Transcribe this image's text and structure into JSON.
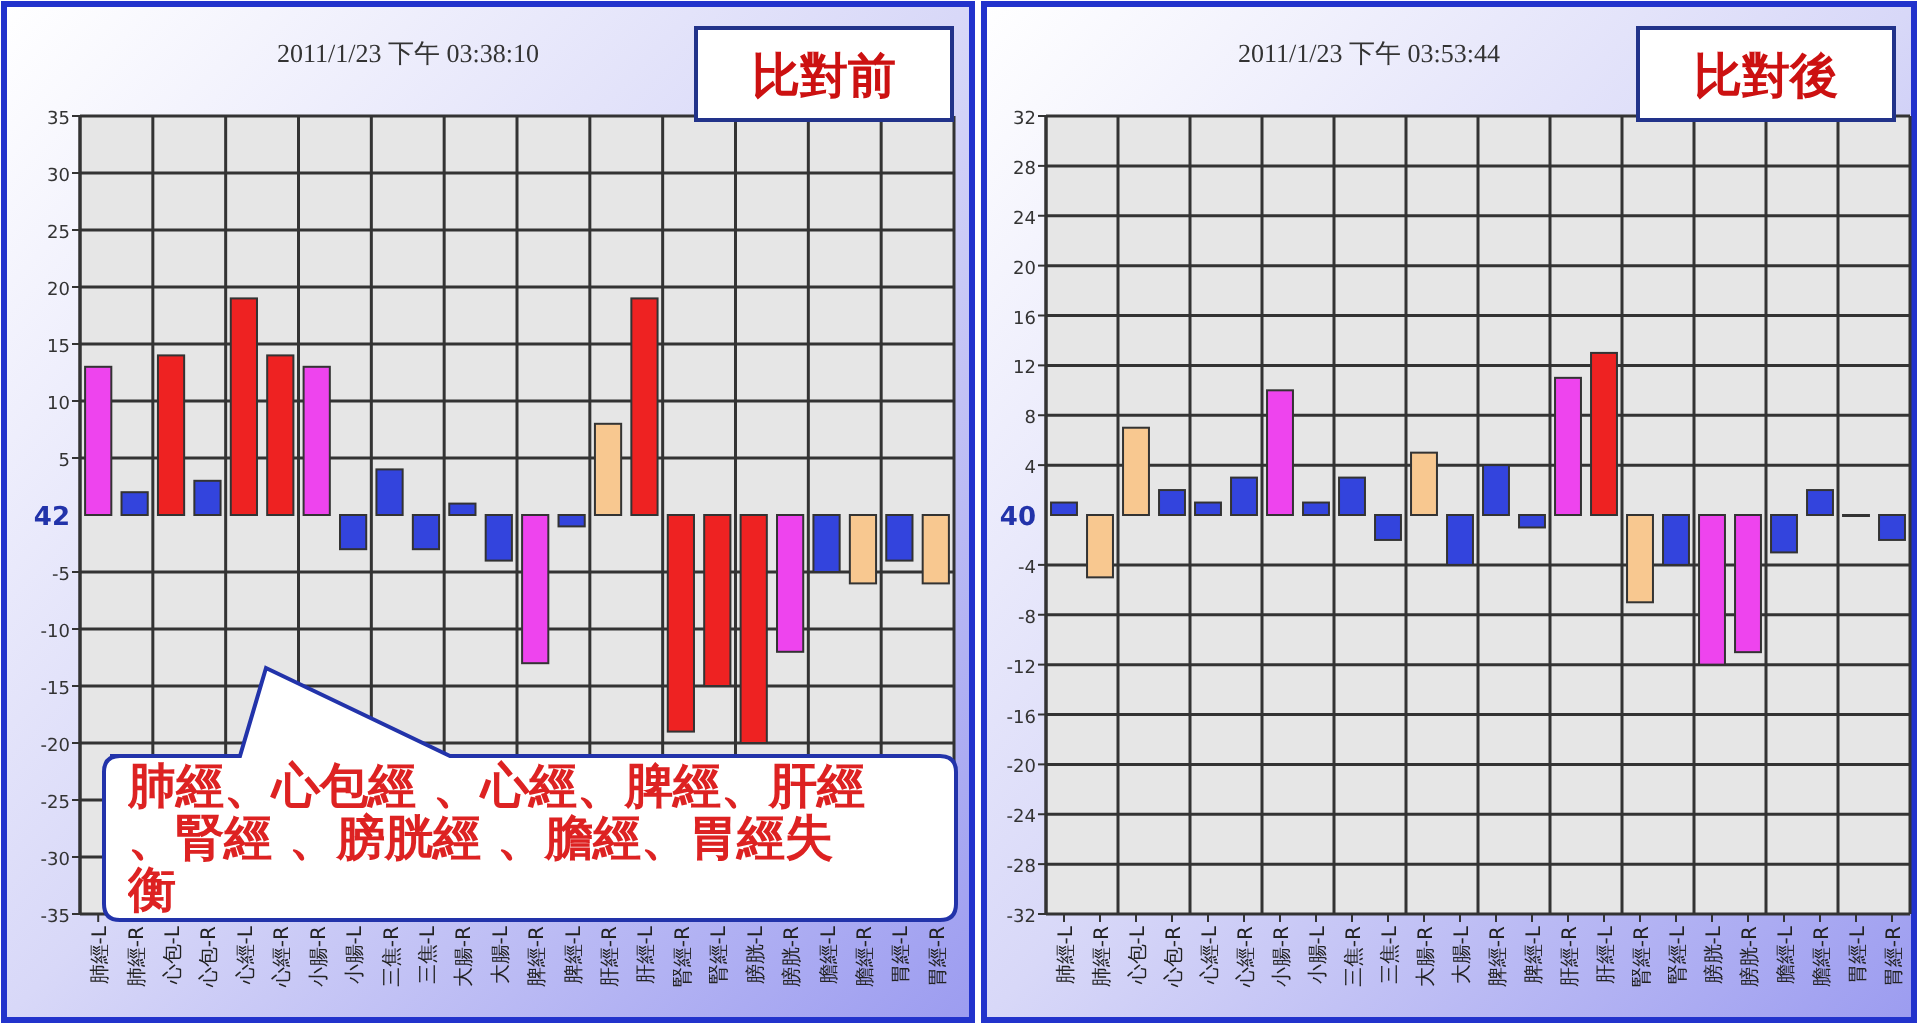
{
  "chart_data": [
    {
      "type": "bar",
      "title": "比對前",
      "subtitle": "2011/1/23 下午 03:38:10",
      "grid": true,
      "categories": [
        "肺經-L",
        "肺經-R",
        "心包-L",
        "心包-R",
        "心經-L",
        "心經-R",
        "小腸-R",
        "小腸-L",
        "三焦-R",
        "三焦-L",
        "大腸-R",
        "大腸-L",
        "脾經-R",
        "脾經-L",
        "肝經-R",
        "肝經-L",
        "腎經-R",
        "腎經-L",
        "膀胱-L",
        "膀胱-R",
        "膽經-L",
        "膽經-R",
        "胃經-L",
        "胃經-R"
      ],
      "values": [
        13,
        2,
        14,
        3,
        19,
        14,
        13,
        -3,
        4,
        -3,
        1,
        -4,
        -13,
        -1,
        8,
        19,
        -19,
        -15,
        -20,
        -12,
        -5,
        -6,
        -4,
        -6
      ],
      "colors": [
        "#ee44ee",
        "#3344dd",
        "#ee2222",
        "#3344dd",
        "#ee2222",
        "#ee2222",
        "#ee44ee",
        "#3344dd",
        "#3344dd",
        "#3344dd",
        "#3344dd",
        "#3344dd",
        "#ee44ee",
        "#3344dd",
        "#f8c890",
        "#ee2222",
        "#ee2222",
        "#ee2222",
        "#ee2222",
        "#ee44ee",
        "#3344dd",
        "#f8c890",
        "#3344dd",
        "#f8c890"
      ],
      "ylim": [
        -35,
        35
      ],
      "yticks": [
        -35,
        -30,
        -25,
        -20,
        -15,
        -10,
        -5,
        5,
        10,
        15,
        20,
        25,
        30,
        35
      ],
      "annotations": [
        "42",
        "肺經、心包經 、心經、脾經、肝經、腎經 、膀胱經 、膽經、胃經失衡"
      ]
    },
    {
      "type": "bar",
      "title": "比對後",
      "subtitle": "2011/1/23 下午 03:53:44",
      "grid": true,
      "categories": [
        "肺經-L",
        "肺經-R",
        "心包-L",
        "心包-R",
        "心經-L",
        "心經-R",
        "小腸-R",
        "小腸-L",
        "三焦-R",
        "三焦-L",
        "大腸-R",
        "大腸-L",
        "脾經-R",
        "脾經-L",
        "肝經-R",
        "肝經-L",
        "腎經-R",
        "腎經-L",
        "膀胱-L",
        "膀胱-R",
        "膽經-L",
        "膽經-R",
        "胃經-L",
        "胃經-R"
      ],
      "values": [
        1,
        -5,
        7,
        2,
        1,
        3,
        10,
        1,
        3,
        -2,
        5,
        -4,
        4,
        -1,
        11,
        13,
        -7,
        -4,
        -12,
        -11,
        -3,
        2,
        0,
        -2
      ],
      "colors": [
        "#3344dd",
        "#f8c890",
        "#f8c890",
        "#3344dd",
        "#3344dd",
        "#3344dd",
        "#ee44ee",
        "#3344dd",
        "#3344dd",
        "#3344dd",
        "#f8c890",
        "#3344dd",
        "#3344dd",
        "#3344dd",
        "#ee44ee",
        "#ee2222",
        "#f8c890",
        "#3344dd",
        "#ee44ee",
        "#ee44ee",
        "#3344dd",
        "#3344dd",
        "#3344dd",
        "#3344dd"
      ],
      "ylim": [
        -32,
        32
      ],
      "yticks": [
        -32,
        -28,
        -24,
        -20,
        -16,
        -12,
        -8,
        -4,
        4,
        8,
        12,
        16,
        20,
        24,
        28,
        32
      ],
      "annotations": [
        "40"
      ]
    }
  ]
}
